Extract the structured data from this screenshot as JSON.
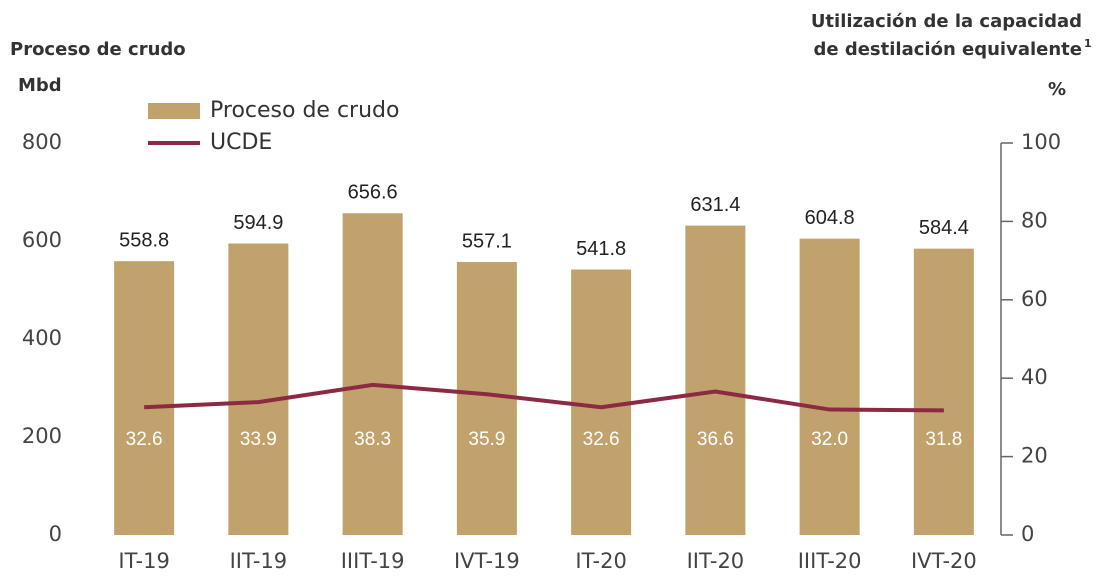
{
  "chart_data": {
    "type": "bar",
    "y_title": "Proceso de crudo",
    "y_unit": "Mbd",
    "y2_title": [
      "Utilización de la capacidad",
      "de destilación equivalente"
    ],
    "y2_footnote": "1",
    "y2_unit": "%",
    "categories": [
      "IT-19",
      "IIT-19",
      "IIIT-19",
      "IVT-19",
      "IT-20",
      "IIT-20",
      "IIIT-20",
      "IVT-20"
    ],
    "series": [
      {
        "name": "Proceso de crudo",
        "type": "bar",
        "color": "#c2a26c",
        "values": [
          558.8,
          594.9,
          656.6,
          557.1,
          541.8,
          631.4,
          604.8,
          584.4
        ]
      },
      {
        "name": "UCDE",
        "type": "line",
        "axis": "y2",
        "color": "#8c2a44",
        "values": [
          32.6,
          33.9,
          38.3,
          35.9,
          32.6,
          36.6,
          32.0,
          31.8
        ],
        "value_labels": [
          "32.6",
          "33.9",
          "38.3",
          "35.9",
          "32.6",
          "36.6",
          "32.0",
          "31.8"
        ]
      }
    ],
    "ylim": [
      0,
      800
    ],
    "yticks": [
      0,
      200,
      400,
      600,
      800
    ],
    "y2lim": [
      0,
      100
    ],
    "y2ticks": [
      0,
      20,
      40,
      60,
      80,
      100
    ],
    "grid": false
  }
}
